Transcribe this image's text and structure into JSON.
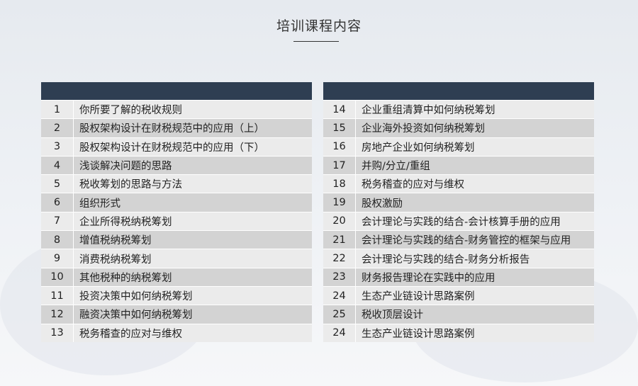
{
  "title": "培训课程内容",
  "colors": {
    "header": "#2e3e52",
    "row_dark": "#d3d3d3",
    "row_light": "#ebebeb"
  },
  "left": [
    {
      "n": "1",
      "t": "你所要了解的税收规则"
    },
    {
      "n": "2",
      "t": "股权架构设计在财税规范中的应用（上）"
    },
    {
      "n": "3",
      "t": "股权架构设计在财税规范中的应用（下）"
    },
    {
      "n": "4",
      "t": "浅谈解决问题的思路"
    },
    {
      "n": "5",
      "t": "税收筹划的思路与方法"
    },
    {
      "n": "6",
      "t": "组织形式"
    },
    {
      "n": "7",
      "t": "企业所得税纳税筹划"
    },
    {
      "n": "8",
      "t": "增值税纳税筹划"
    },
    {
      "n": "9",
      "t": "消费税纳税筹划"
    },
    {
      "n": "10",
      "t": "其他税种的纳税筹划"
    },
    {
      "n": "11",
      "t": "投资决策中如何纳税筹划"
    },
    {
      "n": "12",
      "t": "融资决策中如何纳税筹划"
    },
    {
      "n": "13",
      "t": "税务稽查的应对与维权"
    }
  ],
  "right": [
    {
      "n": "14",
      "t": "企业重组清算中如何纳税筹划"
    },
    {
      "n": "15",
      "t": "企业海外投资如何纳税筹划"
    },
    {
      "n": "16",
      "t": "房地产企业如何纳税筹划"
    },
    {
      "n": "17",
      "t": "并购/分立/重组"
    },
    {
      "n": "18",
      "t": "税务稽查的应对与维权"
    },
    {
      "n": "19",
      "t": "股权激励"
    },
    {
      "n": "20",
      "t": "会计理论与实践的结合-会计核算手册的应用"
    },
    {
      "n": "21",
      "t": "会计理论与实践的结合-财务管控的框架与应用"
    },
    {
      "n": "22",
      "t": "会计理论与实践的结合-财务分析报告"
    },
    {
      "n": "23",
      "t": "财务报告理论在实践中的应用"
    },
    {
      "n": "24",
      "t": "生态产业链设计思路案例"
    },
    {
      "n": "25",
      "t": "税收顶层设计"
    },
    {
      "n": "24",
      "t": "生态产业链设计思路案例"
    }
  ]
}
